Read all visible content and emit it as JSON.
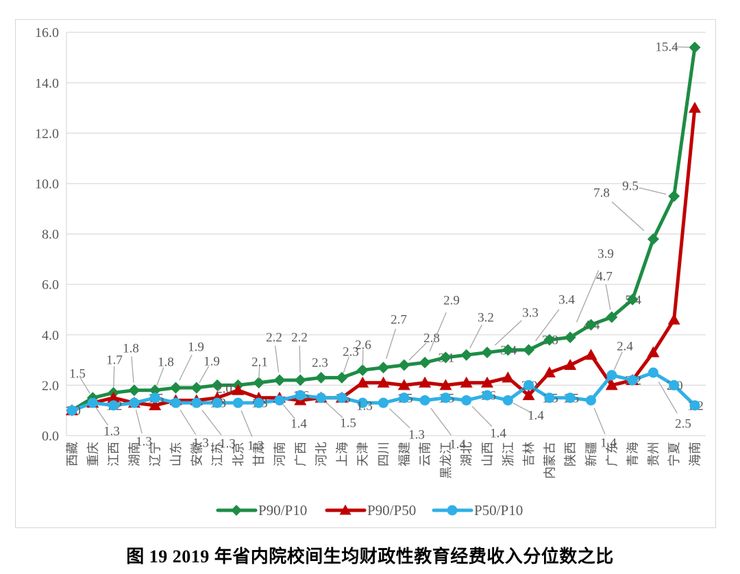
{
  "figure": {
    "caption": "图 19  2019 年省内院校间生均财政性教育经费收入分位数之比"
  },
  "chart_data": {
    "type": "line",
    "title": "",
    "xlabel": "",
    "ylabel": "",
    "ylim": [
      0,
      16
    ],
    "y_ticks": [
      "0.0",
      "2.0",
      "4.0",
      "6.0",
      "8.0",
      "10.0",
      "12.0",
      "14.0",
      "16.0"
    ],
    "grid": true,
    "legend_position": "bottom",
    "categories": [
      "西藏",
      "重庆",
      "江西",
      "湖南",
      "辽宁",
      "山东",
      "安徽",
      "江苏",
      "北京",
      "甘肃",
      "河南",
      "广西",
      "河北",
      "上海",
      "天津",
      "四川",
      "福建",
      "云南",
      "黑龙江",
      "湖北",
      "山西",
      "浙江",
      "吉林",
      "内蒙古",
      "陕西",
      "新疆",
      "广东",
      "青海",
      "贵州",
      "宁夏",
      "海南"
    ],
    "series": [
      {
        "name": "P90/P10",
        "marker": "diamond",
        "color": "#1e8c45",
        "values": [
          1.0,
          1.5,
          1.7,
          1.8,
          1.8,
          1.9,
          1.9,
          2.0,
          2.0,
          2.1,
          2.2,
          2.2,
          2.3,
          2.3,
          2.6,
          2.7,
          2.8,
          2.9,
          3.1,
          3.2,
          3.3,
          3.4,
          3.4,
          3.8,
          3.9,
          4.4,
          4.7,
          5.4,
          7.8,
          9.5,
          15.4
        ]
      },
      {
        "name": "P90/P50",
        "marker": "triangle",
        "color": "#c00000",
        "values": [
          1.0,
          1.3,
          1.5,
          1.3,
          1.2,
          1.4,
          1.4,
          1.5,
          1.8,
          1.5,
          1.5,
          1.4,
          1.5,
          1.5,
          2.1,
          2.1,
          2.0,
          2.1,
          2.0,
          2.1,
          2.1,
          2.3,
          1.6,
          2.5,
          2.8,
          3.2,
          2.0,
          2.2,
          3.3,
          4.6,
          13.0
        ]
      },
      {
        "name": "P50/P10",
        "marker": "circle",
        "color": "#2fb0e6",
        "values": [
          1.0,
          1.3,
          1.2,
          1.3,
          1.5,
          1.3,
          1.3,
          1.3,
          1.3,
          1.3,
          1.4,
          1.6,
          1.5,
          1.5,
          1.3,
          1.3,
          1.5,
          1.4,
          1.5,
          1.4,
          1.6,
          1.4,
          2.0,
          1.5,
          1.5,
          1.4,
          2.4,
          2.2,
          2.5,
          2.0,
          1.2
        ]
      }
    ],
    "colors": {
      "grid": "#d9d9d9",
      "axis_text": "#595959",
      "data_label": "#595959",
      "leader_line": "#a6a6a6"
    }
  }
}
